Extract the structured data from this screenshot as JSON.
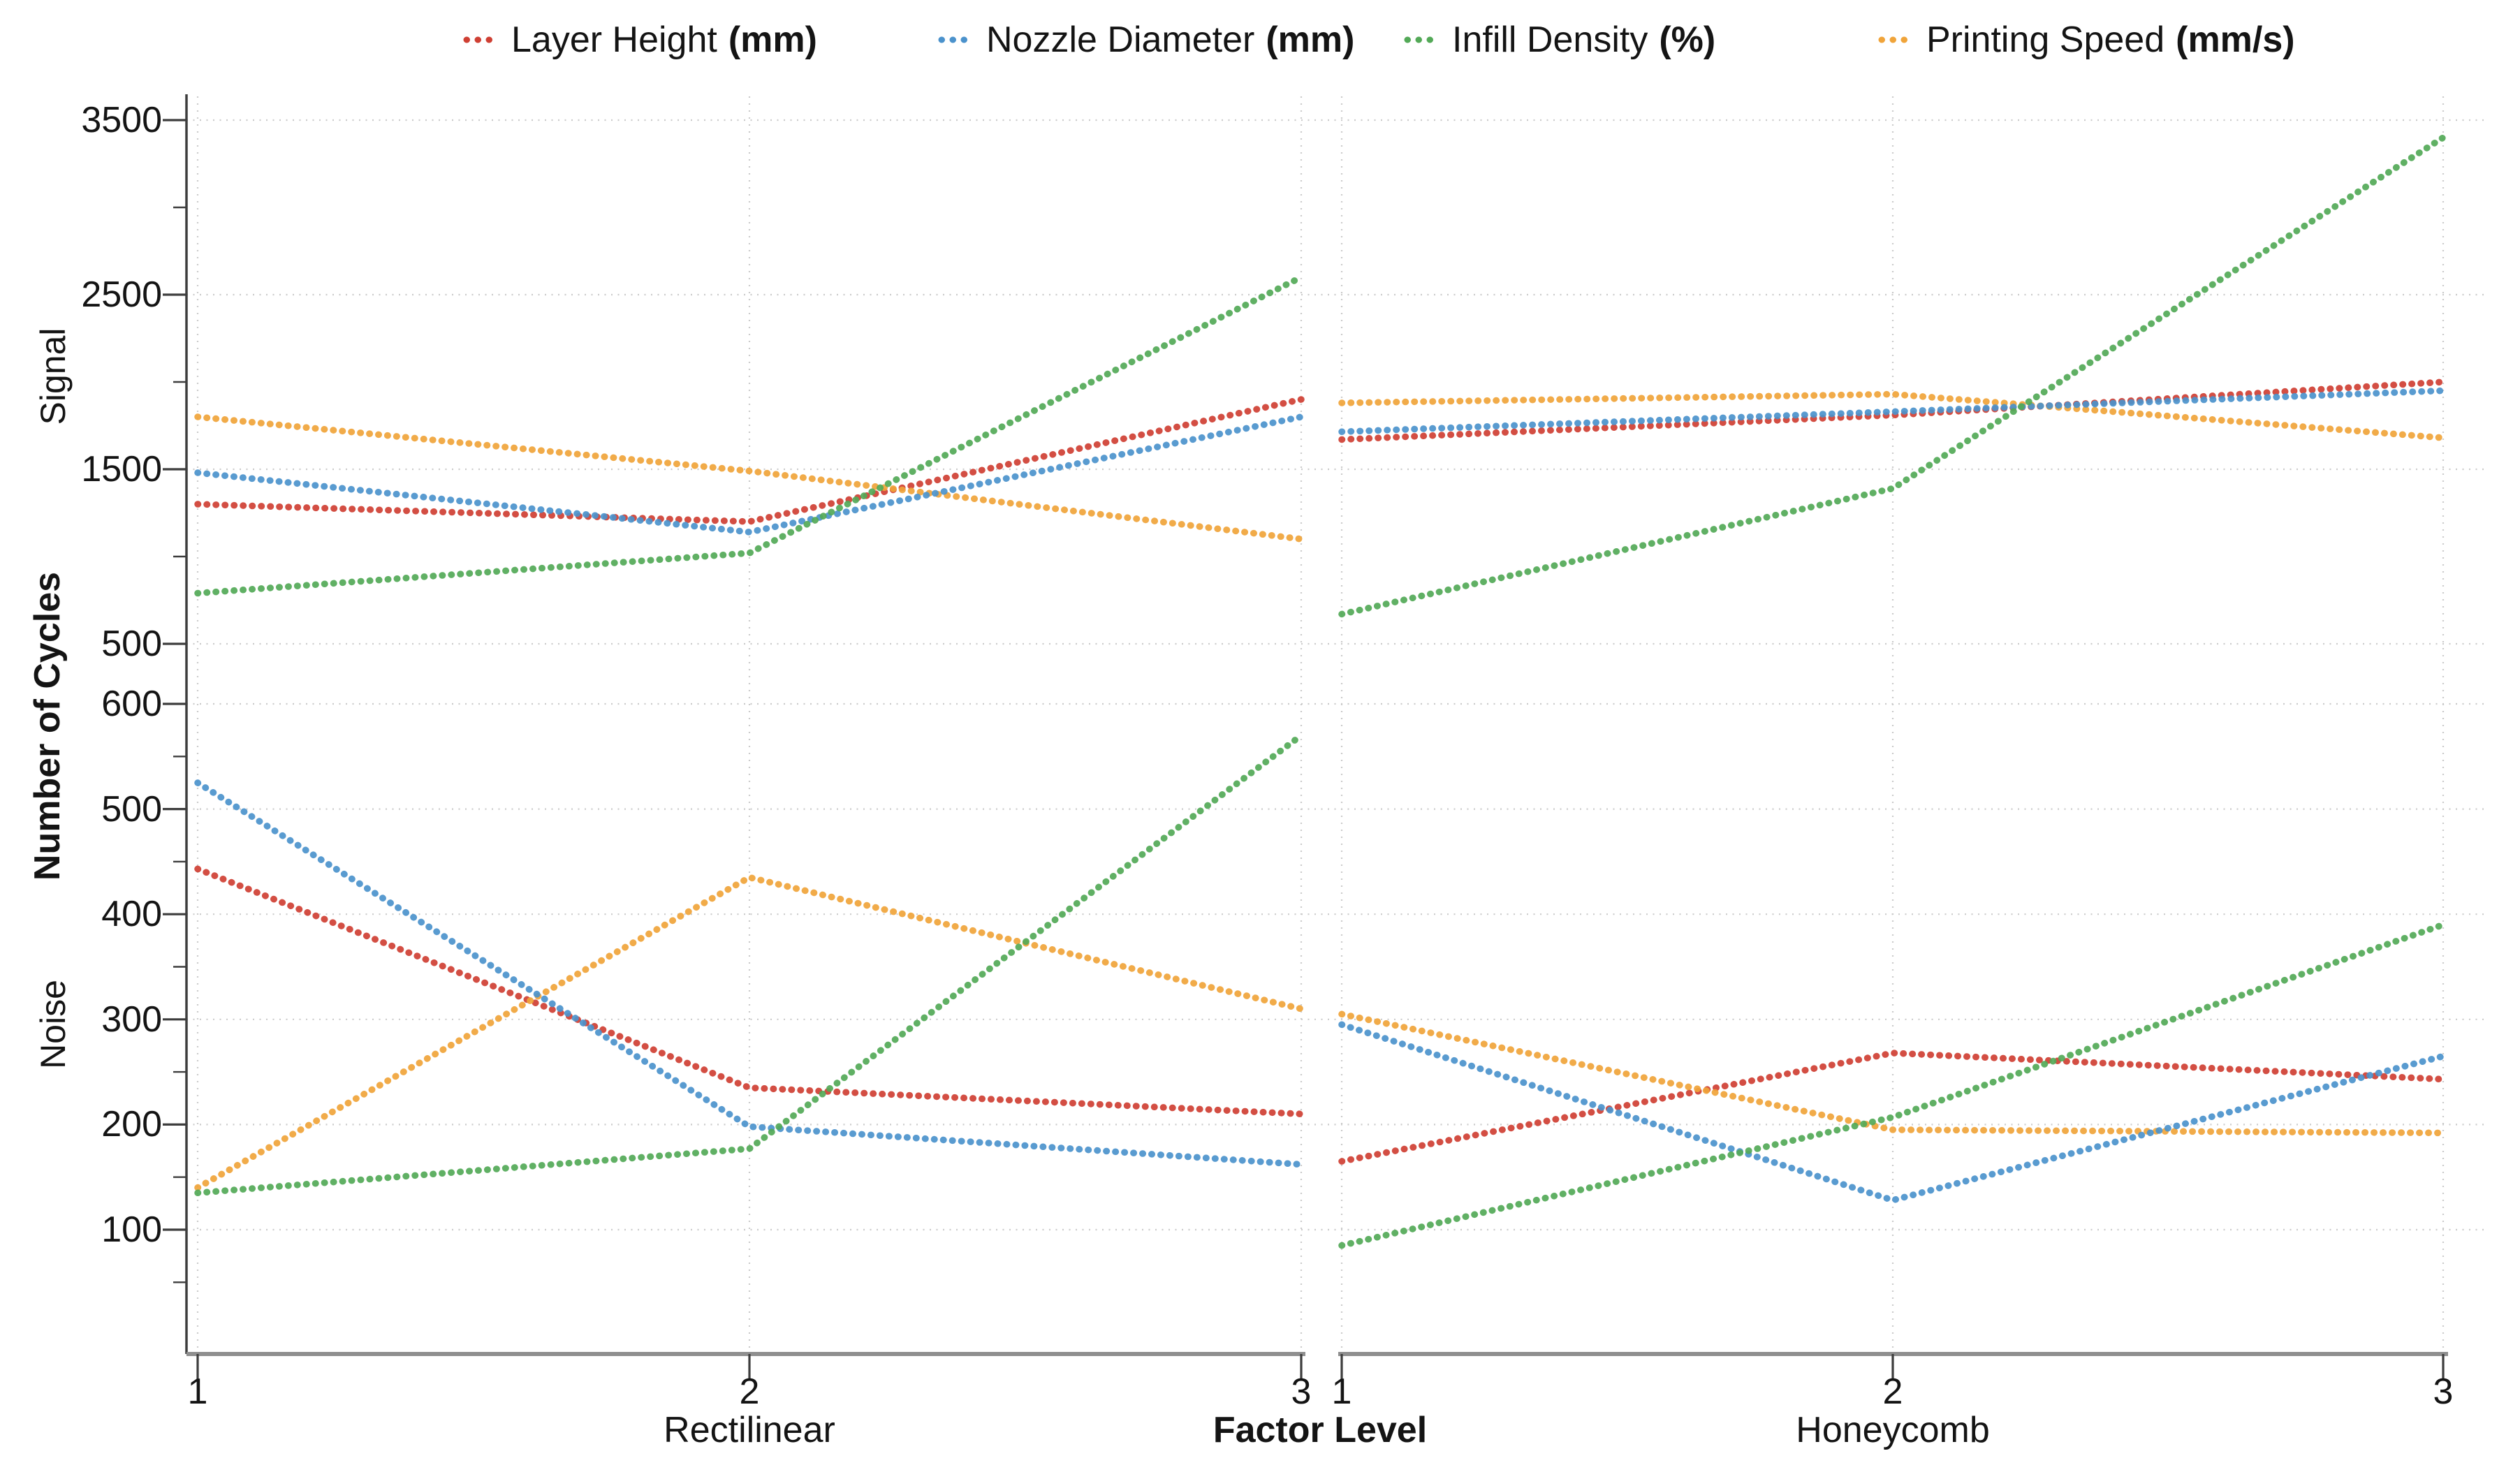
{
  "legend": {
    "items": [
      {
        "label": "Layer Height",
        "unit": "(mm)",
        "color": "#cf3f33"
      },
      {
        "label": "Nozzle Diameter",
        "unit": "(mm)",
        "color": "#4b92cc"
      },
      {
        "label": "Infill Density",
        "unit": "(%)",
        "color": "#53a957"
      },
      {
        "label": "Printing Speed",
        "unit": "(mm/s)",
        "color": "#f0a43a"
      }
    ]
  },
  "axes": {
    "y_outer_label": "Number of Cycles",
    "row_labels": [
      "Signal",
      "Noise"
    ],
    "x_label": "Factor Level",
    "col_labels": [
      "Rectilinear",
      "Honeycomb"
    ],
    "top_ticks": [
      "3500",
      "2500",
      "1500",
      "500"
    ],
    "bottom_ticks": [
      "600",
      "500",
      "400",
      "300",
      "200",
      "100"
    ],
    "x_ticks": [
      "1",
      "2",
      "3"
    ]
  },
  "colors": {
    "grid": "#cbcbcb",
    "spine": "#3d3d3d",
    "axis_line": "#8f8f8f",
    "tick": "#3d3d3d",
    "text": "#141414"
  },
  "chart_data": {
    "type": "line",
    "style": "dotted",
    "x": [
      1,
      2,
      3
    ],
    "xlabel": "Factor Level",
    "ylabel": "Number of Cycles",
    "rows": [
      "Signal",
      "Noise"
    ],
    "cols": [
      "Rectilinear",
      "Honeycomb"
    ],
    "legend_position": "top",
    "grid": true,
    "panels": [
      {
        "id": "signal-rectilinear",
        "row": 0,
        "col": 0,
        "row_label": "Signal",
        "col_label": "Rectilinear",
        "ylim": [
          310,
          3650
        ],
        "y_ticks": [
          3500,
          2500,
          1500,
          500
        ],
        "series": [
          {
            "name": "Layer Height (mm)",
            "color": "#cf3f33",
            "values": [
              1300,
              1200,
              1900
            ]
          },
          {
            "name": "Nozzle Diameter (mm)",
            "color": "#4b92cc",
            "values": [
              1480,
              1140,
              1800
            ]
          },
          {
            "name": "Infill Density (%)",
            "color": "#53a957",
            "values": [
              790,
              1020,
              2600
            ]
          },
          {
            "name": "Printing Speed (mm/s)",
            "color": "#f0a43a",
            "values": [
              1800,
              1490,
              1100
            ]
          }
        ]
      },
      {
        "id": "signal-honeycomb",
        "row": 0,
        "col": 1,
        "row_label": "Signal",
        "col_label": "Honeycomb",
        "ylim": [
          310,
          3650
        ],
        "y_ticks": [
          3500,
          2500,
          1500,
          500
        ],
        "series": [
          {
            "name": "Layer Height (mm)",
            "color": "#cf3f33",
            "values": [
              1670,
              1810,
              2000
            ]
          },
          {
            "name": "Nozzle Diameter (mm)",
            "color": "#4b92cc",
            "values": [
              1715,
              1830,
              1950
            ]
          },
          {
            "name": "Infill Density (%)",
            "color": "#53a957",
            "values": [
              670,
              1390,
              3400
            ]
          },
          {
            "name": "Printing Speed (mm/s)",
            "color": "#f0a43a",
            "values": [
              1880,
              1930,
              1680
            ]
          }
        ]
      },
      {
        "id": "noise-rectilinear",
        "row": 1,
        "col": 0,
        "row_label": "Noise",
        "col_label": "Rectilinear",
        "ylim": [
          -18,
          615
        ],
        "y_ticks": [
          600,
          500,
          400,
          300,
          200,
          100
        ],
        "series": [
          {
            "name": "Layer Height (mm)",
            "color": "#cf3f33",
            "values": [
              443,
              235,
              210
            ]
          },
          {
            "name": "Nozzle Diameter (mm)",
            "color": "#4b92cc",
            "values": [
              525,
              198,
              162
            ]
          },
          {
            "name": "Infill Density (%)",
            "color": "#53a957",
            "values": [
              135,
              177,
              570
            ]
          },
          {
            "name": "Printing Speed (mm/s)",
            "color": "#f0a43a",
            "values": [
              140,
              435,
              310
            ]
          }
        ]
      },
      {
        "id": "noise-honeycomb",
        "row": 1,
        "col": 1,
        "row_label": "Noise",
        "col_label": "Honeycomb",
        "ylim": [
          -18,
          615
        ],
        "y_ticks": [
          600,
          500,
          400,
          300,
          200,
          100
        ],
        "series": [
          {
            "name": "Layer Height (mm)",
            "color": "#cf3f33",
            "values": [
              165,
              268,
              243
            ]
          },
          {
            "name": "Nozzle Diameter (mm)",
            "color": "#4b92cc",
            "values": [
              295,
              128,
              265
            ]
          },
          {
            "name": "Infill Density (%)",
            "color": "#53a957",
            "values": [
              85,
              207,
              390
            ]
          },
          {
            "name": "Printing Speed (mm/s)",
            "color": "#f0a43a",
            "values": [
              305,
              195,
              192
            ]
          }
        ]
      }
    ]
  }
}
